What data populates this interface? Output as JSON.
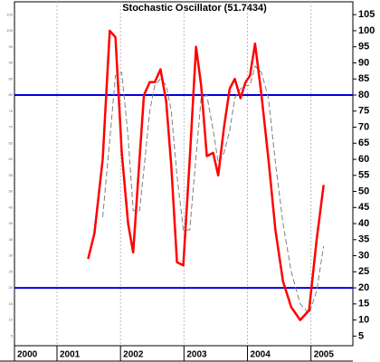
{
  "chart_data": {
    "type": "line",
    "title": "Stochastic Oscillator (51.7434)",
    "x": [
      2001.49,
      2001.59,
      2001.72,
      2001.83,
      2001.92,
      2002.02,
      2002.12,
      2002.2,
      2002.3,
      2002.37,
      2002.46,
      2002.54,
      2002.63,
      2002.72,
      2002.8,
      2002.89,
      2002.99,
      2003.09,
      2003.19,
      2003.27,
      2003.36,
      2003.46,
      2003.54,
      2003.63,
      2003.72,
      2003.8,
      2003.89,
      2003.97,
      2004.04,
      2004.12,
      2004.22,
      2004.33,
      2004.44,
      2004.56,
      2004.69,
      2004.83,
      2004.97,
      2005.09,
      2005.2
    ],
    "series": [
      {
        "color": "#ff0000",
        "style": "solid",
        "values": [
          29,
          37,
          60,
          100,
          98,
          62,
          40,
          31,
          60,
          80,
          84,
          84,
          88,
          78,
          58,
          28,
          27,
          60,
          95,
          83,
          61,
          62,
          55,
          70,
          82,
          85,
          79,
          84,
          86,
          96,
          80,
          60,
          38,
          22,
          14,
          10,
          13,
          35,
          52
        ]
      },
      {
        "color": "#808080",
        "style": "dashed",
        "values": [
          null,
          null,
          42,
          66,
          86,
          87,
          67,
          44,
          44,
          57,
          75,
          83,
          85,
          83,
          75,
          55,
          38,
          38,
          61,
          79,
          80,
          69,
          59,
          62,
          69,
          79,
          82,
          83,
          83,
          89,
          87,
          79,
          59,
          40,
          25,
          15,
          12,
          19,
          33
        ]
      }
    ],
    "reference_lines": [
      80,
      20
    ],
    "reference_color": "#0000dd",
    "xlim": [
      2000.33,
      2005.66
    ],
    "xticks": [
      2000,
      2001,
      2002,
      2003,
      2004,
      2005
    ],
    "ylim": [
      2,
      109
    ],
    "yticks": [
      5,
      10,
      15,
      20,
      25,
      30,
      35,
      40,
      45,
      50,
      55,
      60,
      65,
      70,
      75,
      80,
      85,
      90,
      95,
      100,
      105
    ],
    "grid": "x"
  }
}
